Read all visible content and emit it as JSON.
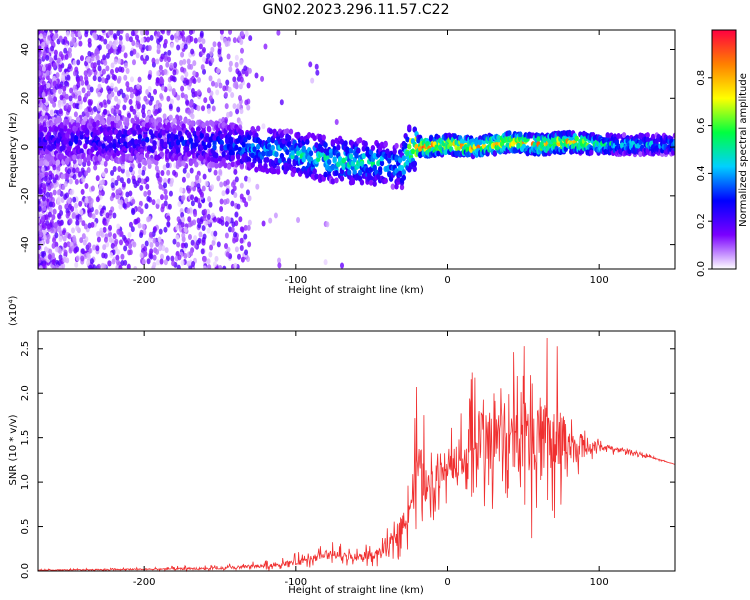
{
  "figure_title": "GN02.2023.296.11.57.C22",
  "chart_data": [
    {
      "type": "heatmap",
      "xlabel": "Height of straight line (km)",
      "ylabel": "Frequency (Hz)",
      "xlim": [
        -270,
        150
      ],
      "ylim": [
        -50,
        48
      ],
      "xticks": [
        -200,
        -100,
        0,
        100
      ],
      "yticks": [
        -40,
        -20,
        0,
        20,
        40
      ],
      "colorbar": {
        "label": "Normalized spectral amplitude",
        "range": [
          0.0,
          1.0
        ],
        "ticks": [
          0.0,
          0.2,
          0.4,
          0.6,
          0.8
        ],
        "tick_labels": [
          "0.0",
          "0.2",
          "0.4",
          "0.6",
          "0.8"
        ],
        "colors": [
          "#ffffff",
          "#7a00ff",
          "#0000ff",
          "#00d0ff",
          "#00ff40",
          "#ffff00",
          "#ff8000",
          "#ff0040"
        ]
      },
      "ridge": {
        "x": [
          -270,
          -220,
          -180,
          -150,
          -120,
          -100,
          -80,
          -60,
          -45,
          -30,
          -25,
          -15,
          0,
          20,
          40,
          60,
          80,
          100,
          120,
          150
        ],
        "y": [
          2,
          3,
          2,
          1,
          -1,
          -3,
          -5,
          -6,
          -7,
          -8,
          0,
          0,
          1,
          0,
          2,
          1,
          2,
          1,
          1,
          1
        ],
        "peak_amplitude": [
          0.25,
          0.3,
          0.3,
          0.35,
          0.45,
          0.5,
          0.55,
          0.55,
          0.5,
          0.45,
          0.8,
          0.9,
          0.9,
          0.85,
          0.9,
          0.85,
          0.9,
          0.6,
          0.5,
          0.45
        ]
      }
    },
    {
      "type": "line",
      "xlabel": "Height of straight line (km)",
      "ylabel": "SNR (10 * v/v)",
      "y_scale_label": "(x10⁴)",
      "xlim": [
        -270,
        150
      ],
      "ylim": [
        0,
        2.7
      ],
      "xticks": [
        -200,
        -100,
        0,
        100
      ],
      "yticks": [
        0.0,
        0.5,
        1.0,
        1.5,
        2.0,
        2.5
      ],
      "ytick_labels": [
        "0.0",
        "0.5",
        "1.0",
        "1.5",
        "2.0",
        "2.5"
      ],
      "color": "#f03030",
      "envelope": {
        "x": [
          -270,
          -200,
          -150,
          -120,
          -100,
          -80,
          -60,
          -45,
          -35,
          -25,
          -20,
          -12,
          -5,
          0,
          10,
          20,
          30,
          40,
          50,
          60,
          70,
          80,
          90,
          100,
          120,
          150
        ],
        "upper": [
          0.02,
          0.04,
          0.08,
          0.12,
          0.2,
          0.35,
          0.3,
          0.35,
          0.6,
          1.1,
          2.25,
          1.4,
          1.6,
          1.9,
          2.0,
          2.4,
          2.35,
          2.7,
          2.65,
          2.6,
          2.7,
          2.1,
          1.7,
          1.5,
          1.4,
          1.2
        ],
        "lower": [
          0.0,
          0.0,
          0.0,
          0.0,
          0.02,
          0.05,
          0.05,
          0.05,
          0.1,
          0.2,
          0.4,
          0.4,
          0.7,
          0.7,
          0.8,
          0.7,
          0.5,
          0.3,
          0.2,
          0.5,
          0.3,
          0.7,
          1.0,
          1.3,
          1.3,
          1.2
        ],
        "mean": [
          0.01,
          0.02,
          0.03,
          0.06,
          0.1,
          0.18,
          0.15,
          0.2,
          0.35,
          0.7,
          1.2,
          0.9,
          1.1,
          1.2,
          1.3,
          1.5,
          1.4,
          1.6,
          1.5,
          1.5,
          1.5,
          1.4,
          1.4,
          1.4,
          1.35,
          1.2
        ]
      }
    }
  ]
}
